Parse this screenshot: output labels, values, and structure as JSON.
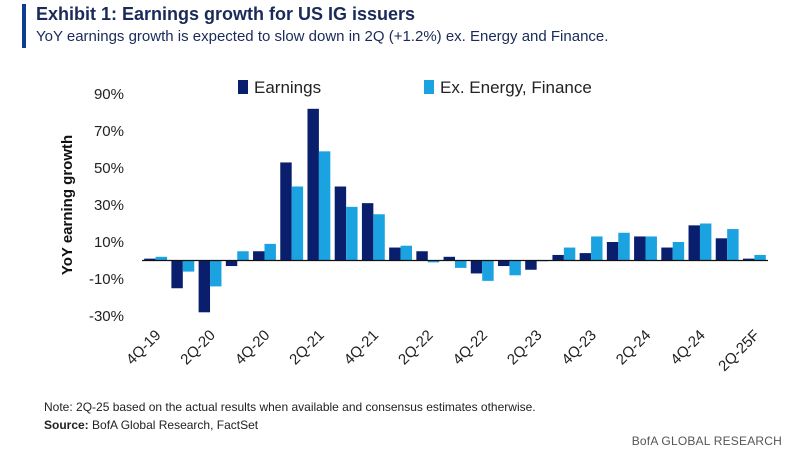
{
  "header": {
    "title": "Exhibit 1: Earnings growth for US IG issuers",
    "subtitle": "YoY earnings growth is expected to slow down in 2Q (+1.2%) ex. Energy and Finance.",
    "accent_color": "#0a3d91"
  },
  "footer": {
    "note": "Note: 2Q-25 based on the actual results when available and consensus estimates otherwise.",
    "source_label": "Source:",
    "source_text": "BofA Global Research, FactSet",
    "brand": "BofA GLOBAL RESEARCH"
  },
  "chart_data": {
    "type": "bar",
    "title": "",
    "xlabel": "",
    "ylabel": "YoY earning growth",
    "ylim": [
      -30,
      90
    ],
    "yticks": [
      -30,
      -10,
      10,
      30,
      50,
      70,
      90
    ],
    "ytick_format": "percent",
    "legend_position": "top",
    "grid": false,
    "categories": [
      "4Q-19",
      "1Q-20",
      "2Q-20",
      "3Q-20",
      "4Q-20",
      "1Q-21",
      "2Q-21",
      "3Q-21",
      "4Q-21",
      "1Q-22",
      "2Q-22",
      "3Q-22",
      "4Q-22",
      "1Q-23",
      "2Q-23",
      "3Q-23",
      "4Q-23",
      "1Q-24",
      "2Q-24",
      "3Q-24",
      "4Q-24",
      "1Q-25",
      "2Q-25F"
    ],
    "xtick_labels": [
      "4Q-19",
      "",
      "2Q-20",
      "",
      "4Q-20",
      "",
      "2Q-21",
      "",
      "4Q-21",
      "",
      "2Q-22",
      "",
      "4Q-22",
      "",
      "2Q-23",
      "",
      "4Q-23",
      "",
      "2Q-24",
      "",
      "4Q-24",
      "",
      "2Q-25F"
    ],
    "series": [
      {
        "name": "Earnings",
        "color": "#0a1e6e",
        "values": [
          1,
          -15,
          -28,
          -3,
          5,
          53,
          82,
          40,
          31,
          7,
          5,
          2,
          -7,
          -3,
          -5,
          3,
          4,
          10,
          13,
          7,
          19,
          12,
          1
        ]
      },
      {
        "name": "Ex. Energy, Finance",
        "color": "#1aa3e0",
        "values": [
          2,
          -6,
          -14,
          5,
          9,
          40,
          59,
          29,
          25,
          8,
          -1,
          -4,
          -11,
          -8,
          0,
          7,
          13,
          15,
          13,
          10,
          20,
          17,
          3
        ]
      }
    ]
  }
}
